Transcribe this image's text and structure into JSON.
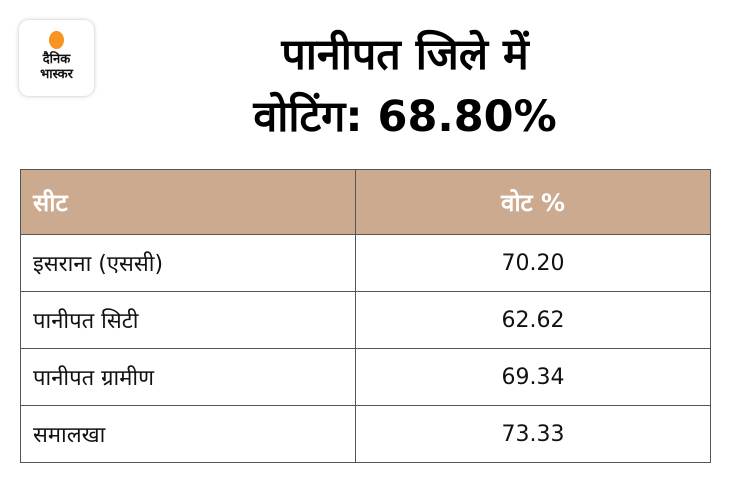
{
  "logo": {
    "line1": "दैनिक",
    "line2": "भास्कर"
  },
  "title": {
    "line1": "पानीपत जिले में",
    "line2": "वोटिंग: 68.80%"
  },
  "colors": {
    "header": "#ccaa8f",
    "logo_dot": "#f7931e"
  },
  "chart_data": {
    "type": "table",
    "title": "पानीपत जिले में वोटिंग: 68.80%",
    "columns": [
      "सीट",
      "वोट %"
    ],
    "rows": [
      {
        "seat": "इसराना (एससी)",
        "vote": "70.20"
      },
      {
        "seat": "पानीपत सिटी",
        "vote": "62.62"
      },
      {
        "seat": "पानीपत ग्रामीण",
        "vote": "69.34"
      },
      {
        "seat": "समालखा",
        "vote": "73.33"
      }
    ]
  }
}
